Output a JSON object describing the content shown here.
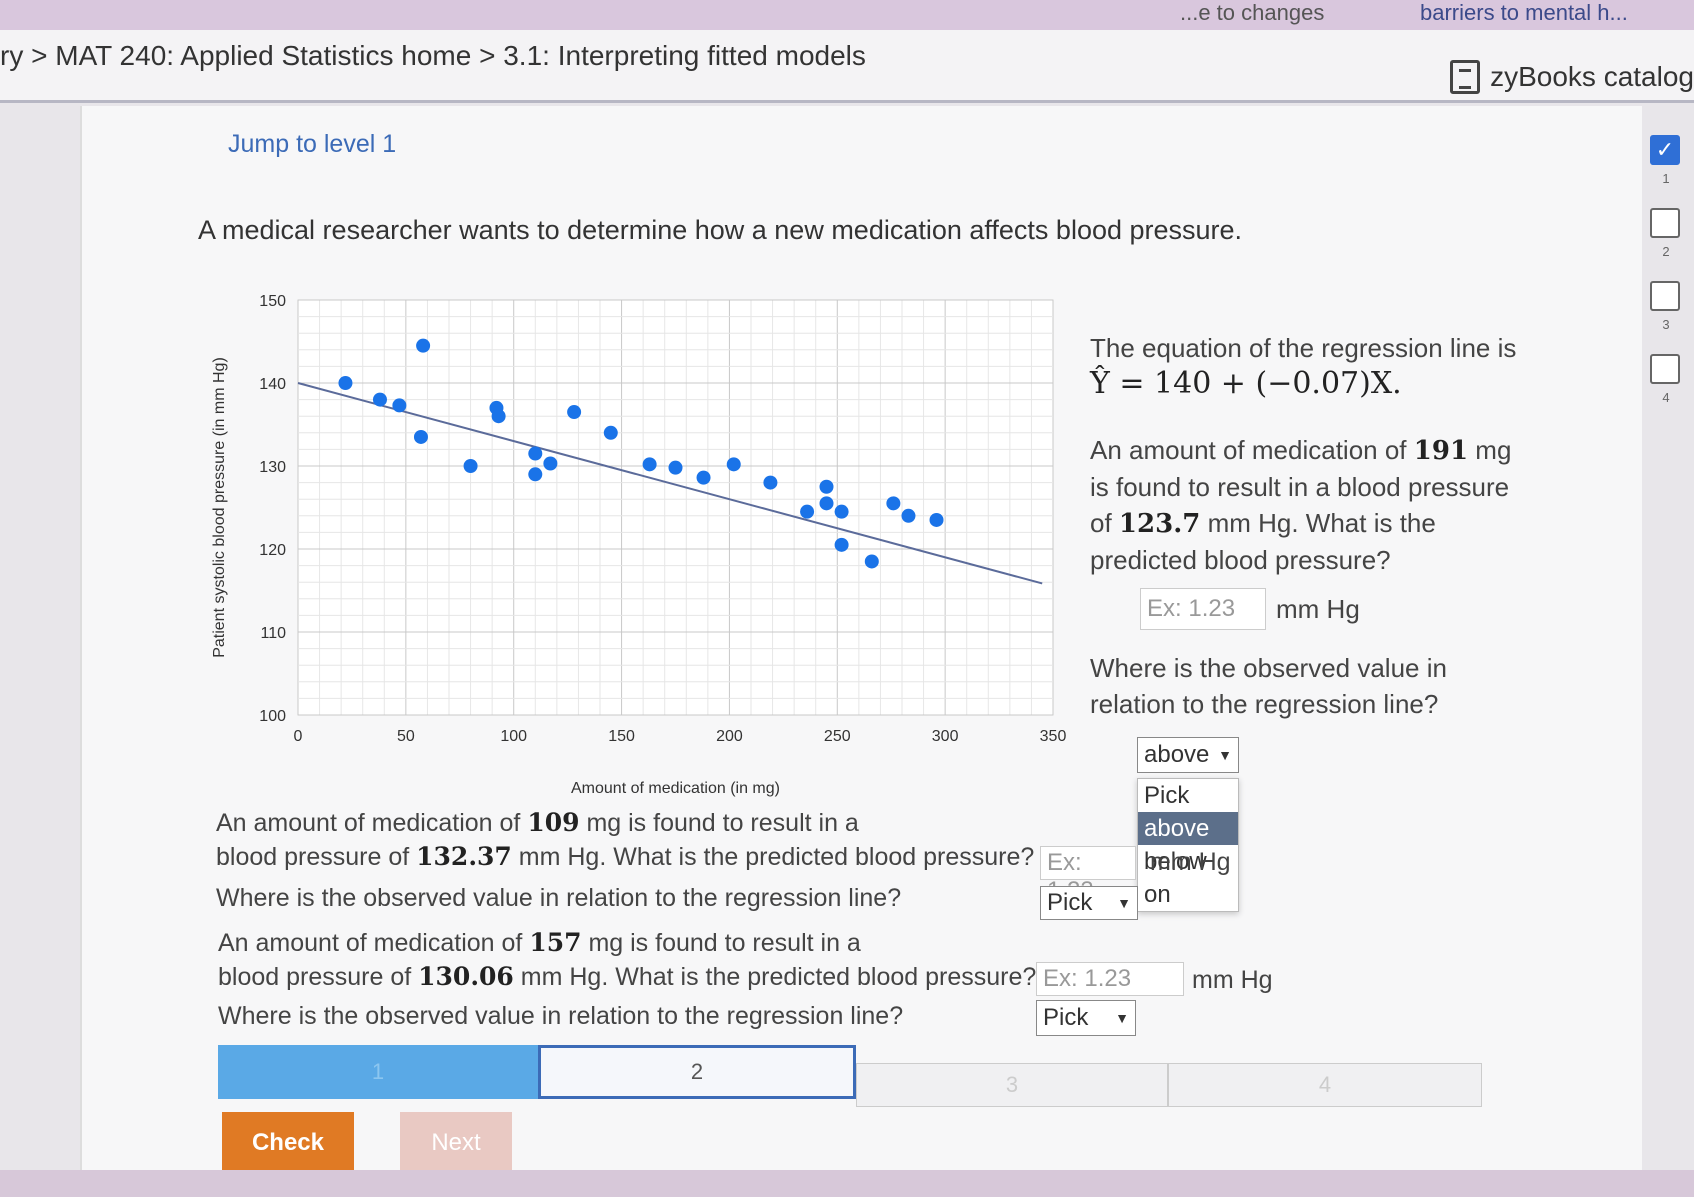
{
  "browser": {
    "cut_tabs": [
      "...e to changes",
      "barriers to mental h..."
    ]
  },
  "header": {
    "breadcrumb": [
      "ry",
      "MAT 240: Applied Statistics home",
      "3.1: Interpreting fitted models"
    ],
    "catalog": "zyBooks catalog"
  },
  "activity": {
    "jump_link": "Jump to level 1",
    "intro": "A medical researcher wants to determine how a new medication affects blood pressure.",
    "equation_intro": "The equation of the regression line is",
    "equation": "Ŷ = 140 + (−0.07)X.",
    "q1": {
      "p1": "An amount of medication of",
      "dose": "191",
      "p2": "mg is found to result in a blood pressure of",
      "bp": "123.7",
      "p3": "mm Hg. What is the predicted blood pressure?",
      "placeholder": "Ex: 1.23",
      "unit": "mm Hg",
      "where": "Where is the observed value in relation to the regression line?",
      "select_value": "above",
      "options": [
        "Pick",
        "above",
        "below",
        "on"
      ]
    },
    "q2": {
      "line1a": "An amount of medication of",
      "dose": "109",
      "line1b": "mg is found to result in a",
      "line2a": "blood pressure of",
      "bp": "132.37",
      "line2b": "mm Hg. What is the predicted blood pressure?",
      "placeholder": "Ex: 1.23",
      "unit": "mm Hg",
      "where": "Where is the observed value in relation to the regression line?",
      "select_value": "Pick"
    },
    "q3": {
      "line1a": "An amount of medication of",
      "dose": "157",
      "line1b": "mg is found to result in a",
      "line2a": "blood pressure of",
      "bp": "130.06",
      "line2b": "mm Hg. What is the predicted blood pressure?",
      "placeholder": "Ex: 1.23",
      "unit": "mm Hg",
      "where": "Where is the observed value in relation to the regression line?",
      "select_value": "Pick"
    },
    "levels": [
      "1",
      "2",
      "3",
      "4"
    ],
    "current_level": "2",
    "check_label": "Check",
    "next_label": "Next",
    "side_levels": [
      "1",
      "2",
      "3",
      "4"
    ]
  },
  "colors": {
    "point": "#1a73e8",
    "regression_line": "#5b6b9a",
    "check": "#e07a24",
    "next": "#e9c9c3",
    "level_done": "#5aa9e6"
  },
  "chart_data": {
    "type": "scatter",
    "xlabel": "Amount of medication (in mg)",
    "ylabel": "Patient systolic blood pressure (in mm Hg)",
    "xlim": [
      0,
      350
    ],
    "ylim": [
      100,
      150
    ],
    "xticks": [
      0,
      50,
      100,
      150,
      200,
      250,
      300,
      350
    ],
    "yticks": [
      100,
      110,
      120,
      130,
      140,
      150
    ],
    "grid": true,
    "regression_line": {
      "intercept": 140,
      "slope": -0.07
    },
    "points": [
      {
        "x": 22,
        "y": 140
      },
      {
        "x": 38,
        "y": 138
      },
      {
        "x": 47,
        "y": 137.3
      },
      {
        "x": 58,
        "y": 144.5
      },
      {
        "x": 57,
        "y": 133.5
      },
      {
        "x": 80,
        "y": 130
      },
      {
        "x": 92,
        "y": 137
      },
      {
        "x": 93,
        "y": 136
      },
      {
        "x": 110,
        "y": 131.5
      },
      {
        "x": 110,
        "y": 129
      },
      {
        "x": 117,
        "y": 130.3
      },
      {
        "x": 128,
        "y": 136.5
      },
      {
        "x": 145,
        "y": 134
      },
      {
        "x": 163,
        "y": 130.2
      },
      {
        "x": 175,
        "y": 129.8
      },
      {
        "x": 188,
        "y": 128.6
      },
      {
        "x": 202,
        "y": 130.2
      },
      {
        "x": 219,
        "y": 128
      },
      {
        "x": 236,
        "y": 124.5
      },
      {
        "x": 245,
        "y": 127.5
      },
      {
        "x": 245,
        "y": 125.5
      },
      {
        "x": 252,
        "y": 124.5
      },
      {
        "x": 252,
        "y": 120.5
      },
      {
        "x": 266,
        "y": 118.5
      },
      {
        "x": 276,
        "y": 125.5
      },
      {
        "x": 283,
        "y": 124
      },
      {
        "x": 296,
        "y": 123.5
      }
    ]
  }
}
